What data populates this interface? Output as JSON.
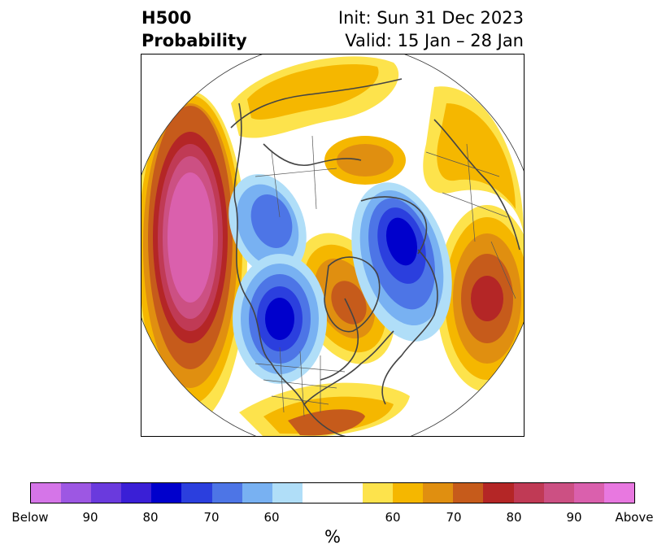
{
  "title": {
    "left_line1": "H500",
    "left_line2": "Probability",
    "right_line1": "Init: Sun 31 Dec 2023",
    "right_line2": "Valid: 15 Jan – 28 Jan"
  },
  "colorbar": {
    "colors": [
      "#d575e8",
      "#9d57e3",
      "#6a3add",
      "#3a1fd6",
      "#0000cc",
      "#2b3fde",
      "#4d75e6",
      "#78b1f2",
      "#b0def8",
      "#ffffff",
      "#ffffff",
      "#fde34c",
      "#f5b700",
      "#e08f10",
      "#c65b1b",
      "#b42626",
      "#c03a55",
      "#cc5083",
      "#da60ad",
      "#e878e0"
    ],
    "tick_labels": [
      "Below",
      "90",
      "80",
      "70",
      "60",
      "60",
      "70",
      "80",
      "90",
      "Above"
    ],
    "unit": "%"
  },
  "map": {
    "projection": "polar-stereographic",
    "features": [
      "coastlines",
      "country-borders",
      "state-borders"
    ]
  }
}
